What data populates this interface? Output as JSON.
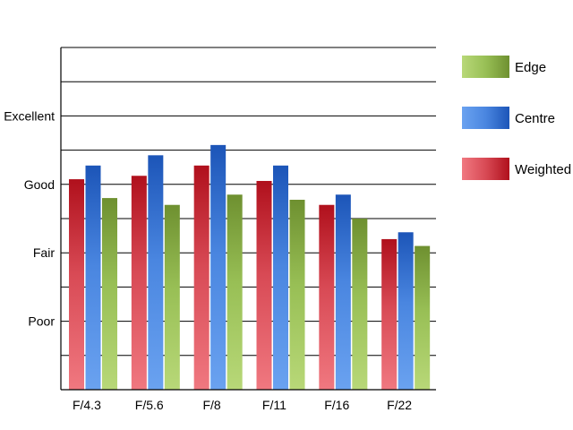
{
  "chart_data": {
    "type": "bar",
    "categories": [
      "F/4.3",
      "F/5.6",
      "F/8",
      "F/11",
      "F/16",
      "F/22"
    ],
    "ylim": [
      0,
      10
    ],
    "yticks": [
      {
        "value": 2,
        "label": "Poor"
      },
      {
        "value": 4,
        "label": "Fair"
      },
      {
        "value": 6,
        "label": "Good"
      },
      {
        "value": 8,
        "label": "Excellent"
      }
    ],
    "grid": true,
    "legend_position": "right",
    "series": [
      {
        "name": "Weighted",
        "values": [
          6.15,
          6.25,
          6.55,
          6.1,
          5.4,
          4.4
        ],
        "colors": [
          "#f07880",
          "#d84a55",
          "#b0101c"
        ]
      },
      {
        "name": "Centre",
        "values": [
          6.55,
          6.85,
          7.15,
          6.55,
          5.7,
          4.6
        ],
        "colors": [
          "#6aa2f0",
          "#4a86e0",
          "#1c55b8"
        ]
      },
      {
        "name": "Edge",
        "values": [
          5.6,
          5.4,
          5.7,
          5.55,
          5.0,
          4.2
        ],
        "colors": [
          "#b8d878",
          "#98bf55",
          "#6e9030"
        ]
      }
    ],
    "legend_order": [
      "Edge",
      "Centre",
      "Weighted"
    ]
  }
}
